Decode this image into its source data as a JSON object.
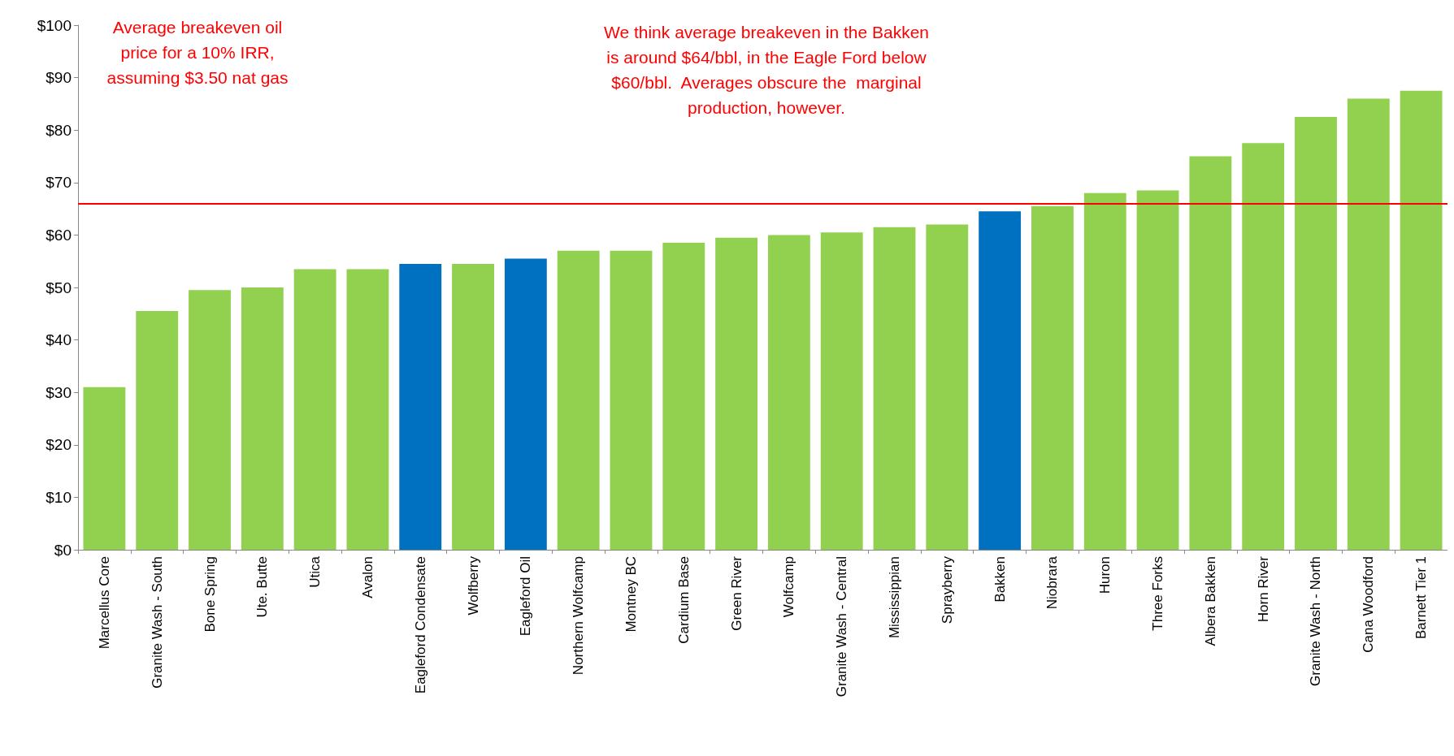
{
  "chart_data": {
    "type": "bar",
    "categories": [
      "Marcellus Core",
      "Granite Wash - South",
      "Bone Spring",
      "Ute. Butte",
      "Utica",
      "Avalon",
      "Eagleford Condensate",
      "Wolfberry",
      "Eagleford Oil",
      "Northern Wolfcamp",
      "Montney BC",
      "Cardium Base",
      "Green River",
      "Wolfcamp",
      "Granite Wash - Central",
      "Mississippian",
      "Sprayberry",
      "Bakken",
      "Niobrara",
      "Huron",
      "Three Forks",
      "Albera Bakken",
      "Horn River",
      "Granite Wash - North",
      "Cana Woodford",
      "Barnett Tier 1"
    ],
    "values": [
      31,
      45.5,
      49.5,
      50,
      53.5,
      53.5,
      54.5,
      54.5,
      55.5,
      57,
      57,
      58.5,
      59.5,
      60,
      60.5,
      61.5,
      62,
      64.5,
      65.5,
      68,
      68.5,
      75,
      77.5,
      82.5,
      86,
      87.5
    ],
    "colors": [
      "#92d050",
      "#92d050",
      "#92d050",
      "#92d050",
      "#92d050",
      "#92d050",
      "#0070c0",
      "#92d050",
      "#0070c0",
      "#92d050",
      "#92d050",
      "#92d050",
      "#92d050",
      "#92d050",
      "#92d050",
      "#92d050",
      "#92d050",
      "#0070c0",
      "#92d050",
      "#92d050",
      "#92d050",
      "#92d050",
      "#92d050",
      "#92d050",
      "#92d050",
      "#92d050"
    ],
    "ylim": [
      0,
      100
    ],
    "yticks": [
      {
        "value": 0,
        "label": "$0"
      },
      {
        "value": 10,
        "label": "$10"
      },
      {
        "value": 20,
        "label": "$20"
      },
      {
        "value": 30,
        "label": "$30"
      },
      {
        "value": 40,
        "label": "$40"
      },
      {
        "value": 50,
        "label": "$50"
      },
      {
        "value": 60,
        "label": "$60"
      },
      {
        "value": 70,
        "label": "$70"
      },
      {
        "value": 80,
        "label": "$80"
      },
      {
        "value": 90,
        "label": "$90"
      },
      {
        "value": 100,
        "label": "$100"
      }
    ],
    "ref_lines": [
      {
        "axis": "y",
        "value": 66,
        "color": "#ff0000",
        "line_style": "solid"
      }
    ],
    "annotations": [
      "Average breakeven oil\nprice for a 10% IRR,\nassuming $3.50 nat gas",
      "We think average breakeven in the Bakken\nis around $64/bbl, in the Eagle Ford below\n$60/bbl.  Averages obscure the  marginal\nproduction, however."
    ],
    "grid": false
  }
}
